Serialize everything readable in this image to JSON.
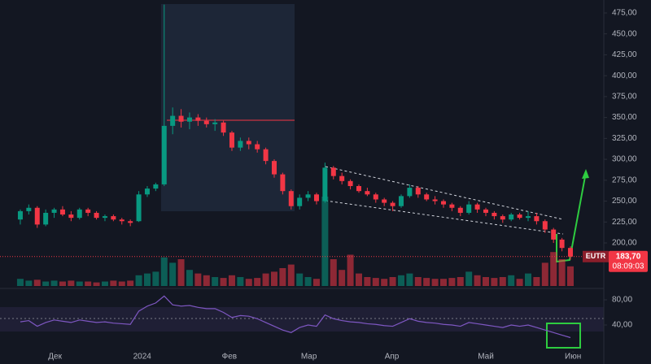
{
  "chart_data": {
    "type": "candlestick",
    "ticker": "EUTR",
    "last_price": {
      "value": 183.7,
      "label": "183,70"
    },
    "countdown": "08:09:03",
    "up_color": "#089981",
    "down_color": "#f23645",
    "ohlc": [
      [
        228,
        240,
        222,
        238
      ],
      [
        238,
        246,
        234,
        242
      ],
      [
        242,
        244,
        218,
        222
      ],
      [
        222,
        240,
        220,
        236
      ],
      [
        236,
        242,
        230,
        240
      ],
      [
        240,
        244,
        232,
        234
      ],
      [
        234,
        238,
        226,
        230
      ],
      [
        230,
        242,
        228,
        240
      ],
      [
        240,
        242,
        232,
        236
      ],
      [
        236,
        238,
        228,
        230
      ],
      [
        230,
        234,
        226,
        232
      ],
      [
        232,
        234,
        226,
        228
      ],
      [
        228,
        230,
        222,
        226
      ],
      [
        226,
        228,
        220,
        224
      ],
      [
        226,
        262,
        225,
        258
      ],
      [
        258,
        268,
        255,
        265
      ],
      [
        265,
        272,
        262,
        270
      ],
      [
        270,
        485,
        268,
        340
      ],
      [
        340,
        362,
        330,
        352
      ],
      [
        352,
        360,
        338,
        345
      ],
      [
        345,
        356,
        336,
        350
      ],
      [
        350,
        354,
        340,
        346
      ],
      [
        346,
        350,
        338,
        342
      ],
      [
        342,
        348,
        334,
        344
      ],
      [
        344,
        346,
        328,
        332
      ],
      [
        332,
        334,
        310,
        314
      ],
      [
        314,
        326,
        310,
        322
      ],
      [
        322,
        326,
        312,
        318
      ],
      [
        318,
        322,
        308,
        312
      ],
      [
        312,
        314,
        294,
        298
      ],
      [
        298,
        300,
        278,
        282
      ],
      [
        282,
        284,
        258,
        262
      ],
      [
        262,
        264,
        240,
        244
      ],
      [
        244,
        258,
        240,
        254
      ],
      [
        254,
        262,
        250,
        258
      ],
      [
        258,
        260,
        246,
        250
      ],
      [
        250,
        296,
        248,
        290
      ],
      [
        290,
        292,
        276,
        280
      ],
      [
        280,
        284,
        270,
        274
      ],
      [
        274,
        276,
        264,
        268
      ],
      [
        268,
        270,
        260,
        262
      ],
      [
        262,
        266,
        256,
        258
      ],
      [
        258,
        260,
        248,
        252
      ],
      [
        252,
        254,
        244,
        248
      ],
      [
        248,
        250,
        238,
        244
      ],
      [
        244,
        258,
        242,
        256
      ],
      [
        256,
        270,
        254,
        266
      ],
      [
        266,
        268,
        254,
        258
      ],
      [
        258,
        260,
        250,
        252
      ],
      [
        252,
        256,
        246,
        250
      ],
      [
        250,
        252,
        242,
        246
      ],
      [
        246,
        248,
        238,
        242
      ],
      [
        242,
        244,
        232,
        236
      ],
      [
        236,
        250,
        234,
        246
      ],
      [
        246,
        248,
        236,
        240
      ],
      [
        240,
        242,
        232,
        236
      ],
      [
        236,
        238,
        228,
        232
      ],
      [
        232,
        234,
        224,
        228
      ],
      [
        228,
        236,
        226,
        234
      ],
      [
        234,
        236,
        228,
        230
      ],
      [
        230,
        238,
        226,
        232
      ],
      [
        232,
        236,
        222,
        226
      ],
      [
        226,
        228,
        212,
        216
      ],
      [
        216,
        218,
        200,
        204
      ],
      [
        204,
        206,
        190,
        194
      ],
      [
        194,
        196,
        180,
        183.7
      ]
    ],
    "volume": [
      8,
      6,
      7,
      5,
      6,
      5,
      6,
      5,
      5,
      4,
      5,
      6,
      5,
      6,
      12,
      14,
      16,
      32,
      26,
      30,
      18,
      14,
      12,
      10,
      9,
      12,
      10,
      8,
      9,
      14,
      16,
      20,
      24,
      14,
      10,
      8,
      100,
      30,
      18,
      35,
      14,
      10,
      9,
      8,
      10,
      12,
      14,
      10,
      9,
      8,
      8,
      9,
      10,
      16,
      12,
      10,
      9,
      10,
      12,
      8,
      14,
      10,
      26,
      38,
      30,
      22
    ],
    "volume_lim": [
      0,
      100
    ],
    "rsi": [
      45,
      47,
      38,
      44,
      48,
      46,
      44,
      48,
      46,
      44,
      45,
      43,
      42,
      41,
      62,
      70,
      75,
      86,
      72,
      70,
      71,
      68,
      66,
      66,
      60,
      52,
      55,
      54,
      50,
      44,
      38,
      32,
      28,
      36,
      40,
      38,
      56,
      50,
      47,
      45,
      44,
      42,
      41,
      39,
      38,
      44,
      50,
      46,
      44,
      43,
      41,
      40,
      38,
      44,
      42,
      40,
      38,
      36,
      40,
      38,
      40,
      36,
      32,
      28,
      24,
      20
    ],
    "rsi_color": "#7e57c2",
    "rsi_ylim": [
      -1.3,
      96.8
    ],
    "rsi_yticks": [
      {
        "value": 80,
        "label": "80,00"
      },
      {
        "value": 40,
        "label": "40,00"
      }
    ],
    "ylim": [
      148.5,
      490.5
    ],
    "yticks": [
      {
        "value": 200,
        "label": "200,00"
      },
      {
        "value": 225,
        "label": "225,00"
      },
      {
        "value": 250,
        "label": "250,00"
      },
      {
        "value": 275,
        "label": "275,00"
      },
      {
        "value": 300,
        "label": "300,00"
      },
      {
        "value": 325,
        "label": "325,00"
      },
      {
        "value": 350,
        "label": "350,00"
      },
      {
        "value": 375,
        "label": "375,00"
      },
      {
        "value": 400,
        "label": "400,00"
      },
      {
        "value": 425,
        "label": "425,00"
      },
      {
        "value": 450,
        "label": "450,00"
      },
      {
        "value": 475,
        "label": "475,00"
      }
    ],
    "xlim": [
      -2.4,
      68.75
    ],
    "xticks": [
      {
        "value": 4.1,
        "label": "Дек"
      },
      {
        "value": 14.4,
        "label": "2024"
      },
      {
        "value": 24.7,
        "label": "Фев"
      },
      {
        "value": 34.1,
        "label": "Мар"
      },
      {
        "value": 43.9,
        "label": "Апр"
      },
      {
        "value": 55,
        "label": "Май"
      },
      {
        "value": 65.3,
        "label": "Июн"
      }
    ],
    "grid": false
  }
}
